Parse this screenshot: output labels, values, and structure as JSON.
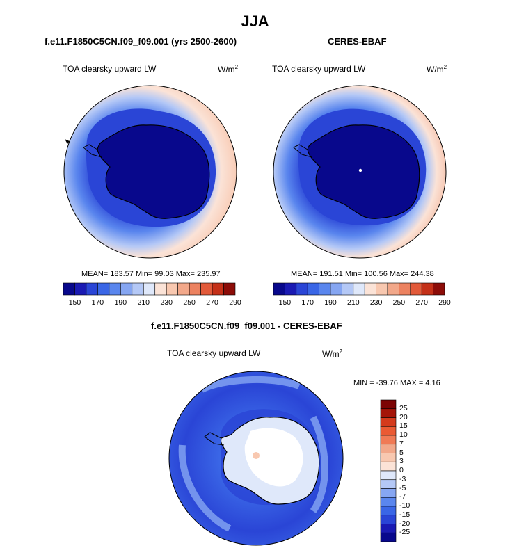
{
  "page": {
    "season": "JJA"
  },
  "colors": {
    "model_levels": [
      "#08088c",
      "#1a1ab3",
      "#2a45d6",
      "#3a66e6",
      "#5a86ee",
      "#86a6f2",
      "#b4c8f6",
      "#dfe8fa",
      "#fbe3d7",
      "#f8c8b0",
      "#f2a88a",
      "#ec8260",
      "#e25a3a",
      "#c43018",
      "#8c0c08"
    ],
    "diff_levels": [
      "#08088c",
      "#1a1ab3",
      "#2a45d6",
      "#3a66e6",
      "#5a86ee",
      "#86a6f2",
      "#b4c8f6",
      "#dfe8fa",
      "#fbe3d7",
      "#f8c8b0",
      "#f2a88a",
      "#f07a55",
      "#ea5a33",
      "#d43a1c",
      "#a41408",
      "#7c0404"
    ],
    "land": "#000000",
    "ocean_outer": "#fbe3d7"
  },
  "chart_data": [
    {
      "type": "heatmap",
      "projection": "south-polar-stereographic",
      "title": "f.e11.F1850C5CN.f09_f09.001 (yrs 2500-2600)",
      "variable": "TOA clearsky upward LW",
      "units": "W/m",
      "units_sup": "2",
      "stats": {
        "mean": 183.57,
        "min": 99.03,
        "max": 235.97,
        "text": "MEAN= 183.57  Min=  99.03  Max= 235.97"
      },
      "colorbar": {
        "orientation": "horizontal",
        "levels": [
          140,
          150,
          160,
          170,
          180,
          190,
          200,
          210,
          220,
          230,
          240,
          250,
          260,
          270,
          280,
          290
        ],
        "tick_labels": [
          "150",
          "170",
          "190",
          "210",
          "230",
          "250",
          "270",
          "290"
        ]
      }
    },
    {
      "type": "heatmap",
      "projection": "south-polar-stereographic",
      "title": "CERES-EBAF",
      "variable": "TOA clearsky upward LW",
      "units": "W/m",
      "units_sup": "2",
      "stats": {
        "mean": 191.51,
        "min": 100.56,
        "max": 244.38,
        "text": "MEAN= 191.51  Min= 100.56  Max= 244.38"
      },
      "colorbar": {
        "orientation": "horizontal",
        "levels": [
          140,
          150,
          160,
          170,
          180,
          190,
          200,
          210,
          220,
          230,
          240,
          250,
          260,
          270,
          280,
          290
        ],
        "tick_labels": [
          "150",
          "170",
          "190",
          "210",
          "230",
          "250",
          "270",
          "290"
        ]
      }
    },
    {
      "type": "heatmap",
      "projection": "south-polar-stereographic",
      "title": "f.e11.F1850C5CN.f09_f09.001 - CERES-EBAF",
      "variable": "TOA clearsky upward LW",
      "units": "W/m",
      "units_sup": "2",
      "stats": {
        "min": -39.76,
        "max": 4.16,
        "text": "MIN = -39.76 MAX =   4.16"
      },
      "colorbar": {
        "orientation": "vertical",
        "tick_labels": [
          "25",
          "20",
          "15",
          "10",
          "7",
          "5",
          "3",
          "0",
          "-3",
          "-5",
          "-7",
          "-10",
          "-15",
          "-20",
          "-25"
        ]
      }
    }
  ]
}
